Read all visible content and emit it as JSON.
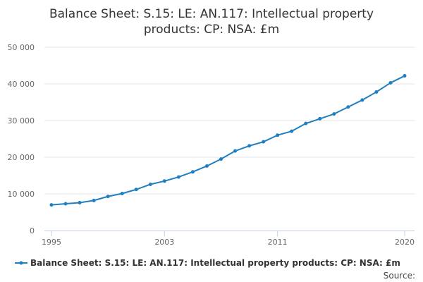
{
  "chart_data": {
    "type": "line",
    "title_lines": [
      "Balance Sheet: S.15: LE: AN.117: Intellectual property",
      "products: CP: NSA: £m"
    ],
    "xlabel": "",
    "ylabel": "",
    "x": [
      1995,
      1996,
      1997,
      1998,
      1999,
      2000,
      2001,
      2002,
      2003,
      2004,
      2005,
      2006,
      2007,
      2008,
      2009,
      2010,
      2011,
      2012,
      2013,
      2014,
      2015,
      2016,
      2017,
      2018,
      2019,
      2020
    ],
    "series": [
      {
        "name": "Balance Sheet: S.15: LE: AN.117: Intellectual property products: CP: NSA: £m",
        "values": [
          7000,
          7300,
          7600,
          8200,
          9300,
          10100,
          11200,
          12600,
          13500,
          14600,
          16000,
          17600,
          19500,
          21700,
          23100,
          24200,
          26000,
          27100,
          29200,
          30500,
          31800,
          33700,
          35600,
          37800,
          40300,
          42200
        ]
      }
    ],
    "xlim": [
      1995,
      2020
    ],
    "ylim": [
      0,
      50000
    ],
    "x_ticks": [
      {
        "value": 1995,
        "label": "1995"
      },
      {
        "value": 2003,
        "label": "2003"
      },
      {
        "value": 2011,
        "label": "2011"
      },
      {
        "value": 2020,
        "label": "2020"
      }
    ],
    "y_ticks": [
      {
        "value": 0,
        "label": "0"
      },
      {
        "value": 10000,
        "label": "10 000"
      },
      {
        "value": 20000,
        "label": "20 000"
      },
      {
        "value": 30000,
        "label": "30 000"
      },
      {
        "value": 40000,
        "label": "40 000"
      },
      {
        "value": 50000,
        "label": "50 000"
      }
    ],
    "grid": true,
    "legend_position": "bottom",
    "source_label": "Source:",
    "colors": {
      "series": "#1f7fc0",
      "grid": "#e6e6e6",
      "axis": "#c0d0e0"
    }
  }
}
